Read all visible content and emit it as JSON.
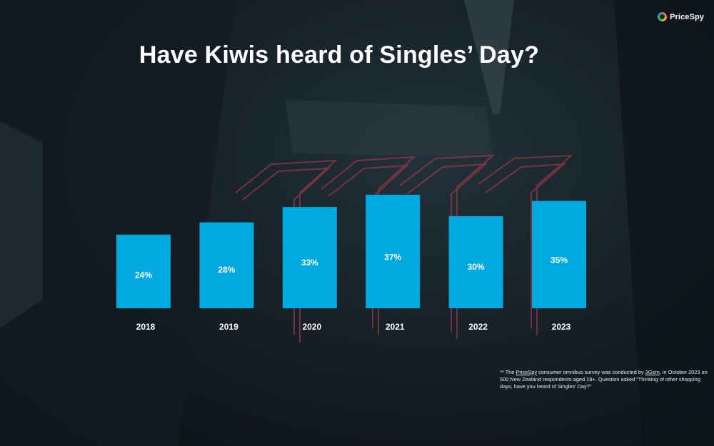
{
  "logo": {
    "text": "PriceSpy"
  },
  "colors": {
    "bar": "#00a9df",
    "text": "#ffffff",
    "neon": "#c23a4e"
  },
  "chart_data": {
    "type": "bar",
    "title": "Have Kiwis heard of Singles’ Day?",
    "categories": [
      "2018",
      "2019",
      "2020",
      "2021",
      "2022",
      "2023"
    ],
    "values": [
      24,
      28,
      33,
      37,
      30,
      35
    ],
    "data_labels": [
      "24%",
      "28%",
      "33%",
      "37%",
      "30%",
      "35%"
    ],
    "ylim": [
      0,
      40
    ],
    "xlabel": "",
    "ylabel": "",
    "grid": false,
    "legend": "none"
  },
  "footnote": {
    "prefix": "** The ",
    "brand": "PriceSpy",
    "middle": " consumer omnibus survey was conducted by ",
    "agency": "3Gem",
    "rest": ", in October 2023 on 500 New Zealand respondents aged 18+.   Question asked  “Thinking of other shopping days, have you heard of Singles’ Day?”"
  }
}
